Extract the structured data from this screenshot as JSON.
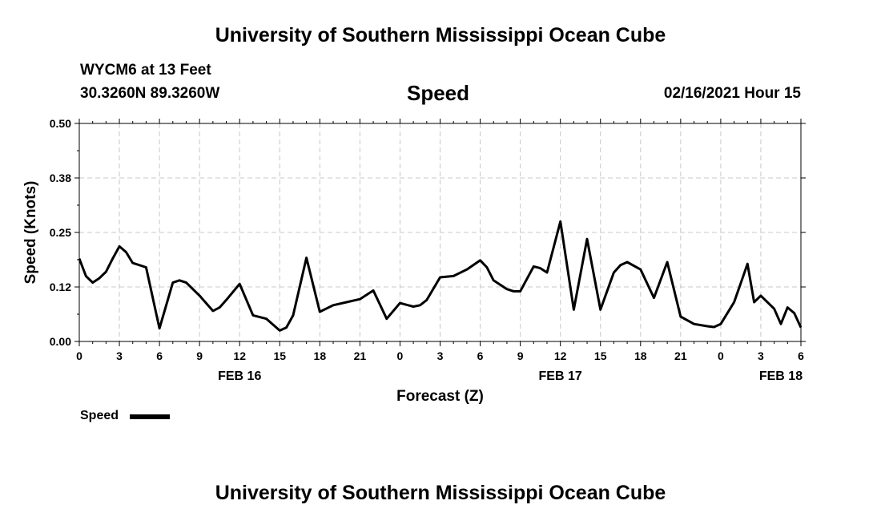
{
  "header": {
    "title_top": "University of Southern Mississippi Ocean Cube",
    "station": "WYCM6 at 13 Feet",
    "coords": "30.3260N 89.3260W",
    "variable": "Speed",
    "datetime": "02/16/2021 Hour 15",
    "title_bottom": "University of Southern Mississippi Ocean Cube"
  },
  "legend": {
    "label": "Speed"
  },
  "chart_data": {
    "type": "line",
    "title": "Speed",
    "xlabel": "Forecast (Z)",
    "ylabel": "Speed (Knots)",
    "ylim": [
      0,
      0.5
    ],
    "yticks": [
      "0.00",
      "0.12",
      "0.25",
      "0.38",
      "0.50"
    ],
    "xlim": [
      0,
      54
    ],
    "xticks": [
      "0",
      "3",
      "6",
      "9",
      "12",
      "15",
      "18",
      "21",
      "0",
      "3",
      "6",
      "9",
      "12",
      "15",
      "18",
      "21",
      "0",
      "3",
      "6"
    ],
    "day_labels": [
      {
        "label": "FEB 16",
        "at": 12
      },
      {
        "label": "FEB 17",
        "at": 36
      },
      {
        "label": "FEB 18",
        "at": 52.5
      }
    ],
    "grid": true,
    "legend_position": "bottom-left",
    "series": [
      {
        "name": "Speed",
        "color": "#000000",
        "x": [
          0,
          0.5,
          1,
          1.5,
          2,
          2.5,
          3,
          3.5,
          4,
          5,
          6,
          7,
          7.5,
          8,
          9,
          10,
          10.5,
          11,
          12,
          13,
          14,
          15,
          15.5,
          16,
          17,
          18,
          19,
          20,
          21,
          22,
          23,
          24,
          25,
          25.5,
          26,
          27,
          28,
          29,
          30,
          30.5,
          31,
          32,
          32.5,
          33,
          34,
          34.5,
          35,
          36,
          37,
          38,
          39,
          40,
          40.5,
          41,
          42,
          43,
          44,
          45,
          46,
          47,
          47.5,
          48,
          49,
          50,
          50.5,
          51,
          52,
          52.5,
          53,
          53.5,
          54
        ],
        "y": [
          0.19,
          0.15,
          0.135,
          0.145,
          0.16,
          0.19,
          0.218,
          0.205,
          0.18,
          0.17,
          0.03,
          0.135,
          0.14,
          0.135,
          0.105,
          0.07,
          0.078,
          0.095,
          0.132,
          0.06,
          0.052,
          0.025,
          0.032,
          0.06,
          0.192,
          0.068,
          0.083,
          0.09,
          0.097,
          0.117,
          0.052,
          0.088,
          0.08,
          0.083,
          0.095,
          0.147,
          0.15,
          0.165,
          0.186,
          0.17,
          0.14,
          0.12,
          0.115,
          0.115,
          0.172,
          0.168,
          0.158,
          0.275,
          0.073,
          0.235,
          0.073,
          0.158,
          0.175,
          0.182,
          0.165,
          0.1,
          0.182,
          0.057,
          0.04,
          0.035,
          0.033,
          0.04,
          0.09,
          0.178,
          0.09,
          0.105,
          0.075,
          0.04,
          0.078,
          0.065,
          0.032
        ]
      }
    ]
  }
}
